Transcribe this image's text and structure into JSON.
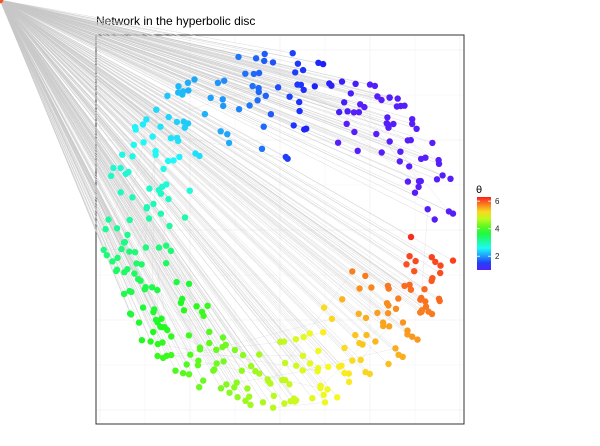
{
  "chart_data": {
    "type": "scatter",
    "title": "Network in the hyperbolic disc",
    "xlabel": "",
    "ylabel": "",
    "xlim": [
      -1.1,
      1.1
    ],
    "ylim": [
      -1.1,
      1.1
    ],
    "grid": true,
    "edges": "light grey lines connecting nodes, most edges radiate from the central hub",
    "hub": {
      "r": 0.0,
      "theta": 6.0
    },
    "legend": {
      "title": "θ",
      "position": "right",
      "colorscale": "rainbow",
      "min": 1.0,
      "max": 6.3,
      "ticks": [
        "2",
        "4",
        "6"
      ],
      "tick_values": [
        2,
        4,
        6
      ]
    },
    "node_groups": [
      {
        "theta_from": 0.02,
        "theta_to": 0.45,
        "r_from": 0.58,
        "r_to": 0.99,
        "count": 14
      },
      {
        "theta_from": 0.45,
        "theta_to": 1.25,
        "r_from": 0.55,
        "r_to": 0.99,
        "count": 45
      },
      {
        "theta_from": 1.25,
        "theta_to": 1.95,
        "r_from": 0.35,
        "r_to": 0.99,
        "count": 38
      },
      {
        "theta_from": 1.95,
        "theta_to": 2.75,
        "r_from": 0.45,
        "r_to": 0.99,
        "count": 44
      },
      {
        "theta_from": 2.75,
        "theta_to": 3.55,
        "r_from": 0.5,
        "r_to": 0.99,
        "count": 52
      },
      {
        "theta_from": 3.55,
        "theta_to": 4.3,
        "r_from": 0.55,
        "r_to": 0.99,
        "count": 56
      },
      {
        "theta_from": 4.3,
        "theta_to": 5.05,
        "r_from": 0.55,
        "r_to": 0.99,
        "count": 52
      },
      {
        "theta_from": 5.05,
        "theta_to": 5.85,
        "r_from": 0.4,
        "r_to": 0.99,
        "count": 55
      },
      {
        "theta_from": 5.85,
        "theta_to": 6.28,
        "r_from": 0.55,
        "r_to": 0.99,
        "count": 18
      }
    ]
  }
}
